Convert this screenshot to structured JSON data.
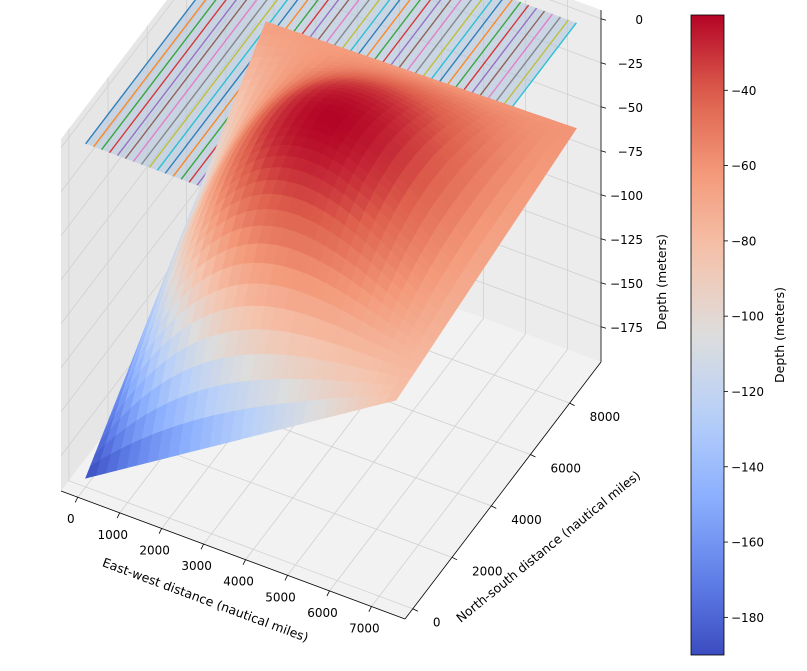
{
  "chart_data": {
    "type": "surface3d",
    "title": "",
    "xlabel": "East-west distance (nautical miles)",
    "ylabel": "North-south distance (nautical miles)",
    "zlabel": "Depth (meters)",
    "colorbar_label": "Depth (meters)",
    "colormap": "coolwarm",
    "xlim": [
      -400,
      7800
    ],
    "ylim": [
      -400,
      9600
    ],
    "zlim": [
      -195,
      5
    ],
    "x_ticks": [
      0,
      1000,
      2000,
      3000,
      4000,
      5000,
      6000,
      7000
    ],
    "y_ticks": [
      0,
      2000,
      4000,
      6000,
      8000
    ],
    "z_ticks": [
      0,
      -25,
      -50,
      -75,
      -100,
      -125,
      -150,
      -175
    ],
    "colorbar_ticks": [
      -40,
      -60,
      -80,
      -100,
      -120,
      -140,
      -160,
      -180
    ],
    "colorbar_range": [
      -190,
      -20
    ],
    "grid": true,
    "surface": {
      "x_range": [
        0,
        7400
      ],
      "y_range": [
        0,
        9200
      ],
      "corner_depths": {
        "x0_y0": -190,
        "xmax_y0": -80,
        "x0_ymax": -65,
        "xmax_ymax": -60
      },
      "max_depth": -20,
      "min_depth": -190
    },
    "survey_plane": {
      "z": 0,
      "line_count": 40,
      "line_colors": [
        "#1f77b4",
        "#ff7f0e",
        "#2ca02c",
        "#d62728",
        "#9467bd",
        "#8c564b",
        "#e377c2",
        "#7f7f7f",
        "#bcbd22",
        "#17becf"
      ]
    }
  }
}
